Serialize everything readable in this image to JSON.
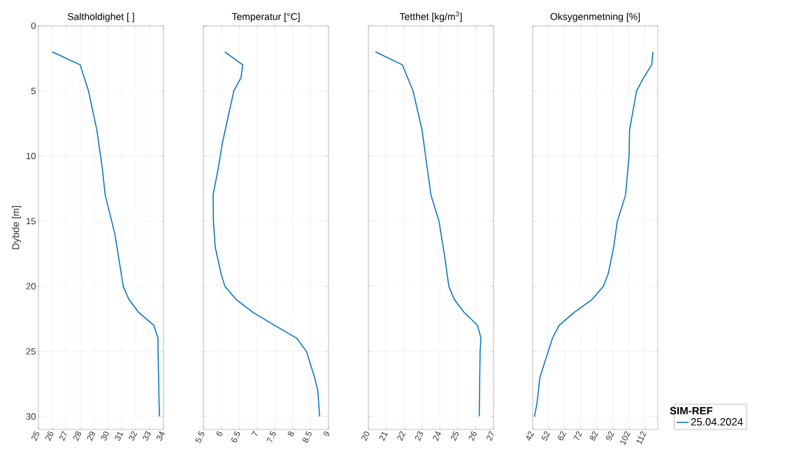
{
  "chart_data": [
    {
      "type": "line",
      "title": "Saltholdighet [ ]",
      "ylabel": "Dybde [m]",
      "xlim": [
        25,
        34
      ],
      "xticks": [
        25,
        26,
        27,
        28,
        29,
        30,
        31,
        32,
        33,
        34
      ],
      "ylim": [
        31,
        0
      ],
      "yticks": [
        0,
        5,
        10,
        15,
        20,
        25,
        30
      ],
      "grid": true,
      "series": [
        {
          "color": "#0072bd",
          "x": [
            26.0,
            28.0,
            28.6,
            29.2,
            29.6,
            29.8,
            30.5,
            30.8,
            31.1,
            31.5,
            32.2,
            33.3,
            33.6,
            33.6,
            33.7
          ],
          "values": [
            2,
            3,
            5,
            8,
            11,
            13,
            16,
            18,
            20,
            21,
            22,
            23,
            24,
            25,
            30
          ]
        }
      ]
    },
    {
      "type": "line",
      "title": "Temperatur [°C]",
      "xlim": [
        5.5,
        9
      ],
      "xticks": [
        5.5,
        6,
        6.5,
        7,
        7.5,
        8,
        8.5,
        9
      ],
      "ylim": [
        31,
        0
      ],
      "yticks": [
        0,
        5,
        10,
        15,
        20,
        25,
        30
      ],
      "grid": true,
      "tick_labels": "x",
      "series": [
        {
          "color": "#0072bd",
          "x": [
            6.1,
            6.6,
            6.55,
            6.35,
            6.19,
            6.03,
            5.91,
            5.77,
            5.78,
            5.83,
            5.99,
            6.1,
            6.41,
            6.88,
            7.49,
            8.11,
            8.38,
            8.61,
            8.7,
            8.75
          ],
          "values": [
            2,
            3,
            4,
            5,
            7,
            9,
            11,
            13,
            15,
            17,
            19,
            20,
            21,
            22,
            23,
            24,
            25,
            27,
            28,
            30
          ]
        }
      ]
    },
    {
      "type": "line",
      "title": "Tetthet [kg/m$^{3}$]",
      "xlim": [
        20,
        27
      ],
      "xticks": [
        20,
        21,
        22,
        23,
        24,
        25,
        26,
        27
      ],
      "ylim": [
        31,
        0
      ],
      "yticks": [
        0,
        5,
        10,
        15,
        20,
        25,
        30
      ],
      "grid": true,
      "tick_labels": "x",
      "series": [
        {
          "color": "#0072bd",
          "x": [
            20.4,
            21.9,
            22.5,
            23.0,
            23.3,
            23.5,
            23.95,
            24.3,
            24.5,
            24.8,
            25.35,
            26.1,
            26.3,
            26.25,
            26.2
          ],
          "values": [
            2,
            3,
            5,
            8,
            11,
            13,
            15,
            18,
            20,
            21,
            22,
            23,
            24,
            25,
            30
          ]
        }
      ]
    },
    {
      "type": "line",
      "title": "Oksygenmetning [%]",
      "xlim": [
        42,
        120
      ],
      "xticks": [
        42,
        52,
        62,
        72,
        82,
        92,
        102,
        112
      ],
      "ylim": [
        31,
        0
      ],
      "yticks": [
        0,
        5,
        10,
        15,
        20,
        25,
        30
      ],
      "grid": true,
      "tick_labels": "x",
      "legend": "bottom right",
      "legend_title": "SIM-REF",
      "series": [
        {
          "name": "25.04.2024",
          "color": "#0072bd",
          "x": [
            117.0,
            116.2,
            111.1,
            106.8,
            102.4,
            102.1,
            99.9,
            94.8,
            92.5,
            89.2,
            86.1,
            79.2,
            68.0,
            58.5,
            54.3,
            46.5,
            44.7,
            43.1
          ],
          "values": [
            2,
            3,
            4,
            5,
            8,
            10,
            13,
            15,
            17,
            19,
            20,
            21,
            22,
            23,
            24,
            27,
            29,
            30
          ]
        }
      ]
    }
  ]
}
